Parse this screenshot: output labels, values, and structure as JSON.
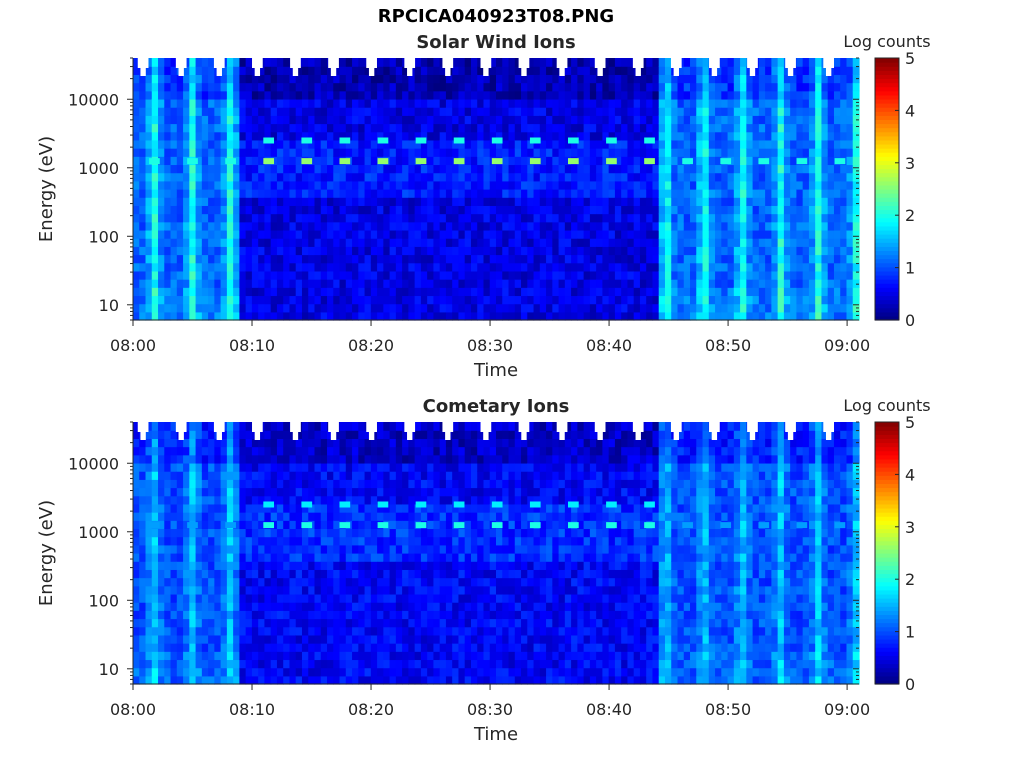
{
  "figure_title": "RPCICA040923T08.PNG",
  "chart_data": [
    {
      "type": "heatmap",
      "title": "Solar Wind Ions",
      "xlabel": "Time",
      "ylabel": "Energy (eV)",
      "y_scale": "log",
      "xlim": [
        "08:00",
        "09:01"
      ],
      "ylim": [
        6,
        40000
      ],
      "x_ticks": [
        "08:00",
        "08:10",
        "08:20",
        "08:30",
        "08:40",
        "08:50",
        "09:00"
      ],
      "y_ticks": [
        "10",
        "100",
        "1000",
        "10000"
      ],
      "colorbar": {
        "label": "Log counts",
        "range": [
          0,
          5
        ],
        "ticks": [
          "0",
          "1",
          "2",
          "3",
          "4",
          "5"
        ],
        "colormap": "jet"
      },
      "active_interval_start": "08:09",
      "active_interval_end": "08:44",
      "beam_energies_eV": [
        1250,
        2500
      ],
      "beam_period_min": 3.2,
      "saturation_pulse_times": [
        "08:01.8",
        "08:05.0",
        "08:08.2",
        "08:44.8",
        "08:48.0",
        "08:51.2",
        "08:54.4",
        "08:57.6",
        "09:00.8"
      ],
      "background_log_counts": {
        "outer_interval": 1.1,
        "active_interval": 0.5,
        "pulse_peak": 2.0
      },
      "beam_log_counts": {
        "line_1250eV": 2.6,
        "line_2500eV": 2.0
      }
    },
    {
      "type": "heatmap",
      "title": "Cometary Ions",
      "xlabel": "Time",
      "ylabel": "Energy (eV)",
      "y_scale": "log",
      "xlim": [
        "08:00",
        "09:01"
      ],
      "ylim": [
        6,
        40000
      ],
      "x_ticks": [
        "08:00",
        "08:10",
        "08:20",
        "08:30",
        "08:40",
        "08:50",
        "09:00"
      ],
      "y_ticks": [
        "10",
        "100",
        "1000",
        "10000"
      ],
      "colorbar": {
        "label": "Log counts",
        "range": [
          0,
          5
        ],
        "ticks": [
          "0",
          "1",
          "2",
          "3",
          "4",
          "5"
        ],
        "colormap": "jet"
      },
      "active_interval_start": "08:09",
      "active_interval_end": "08:44",
      "beam_energies_eV": [
        1250,
        2500
      ],
      "beam_period_min": 3.2,
      "saturation_pulse_times": [
        "08:01.8",
        "08:05.0",
        "08:08.2",
        "08:44.8",
        "08:48.0",
        "08:51.2",
        "08:54.4",
        "08:57.6",
        "09:00.8"
      ],
      "background_log_counts": {
        "outer_interval": 1.0,
        "active_interval": 0.6,
        "pulse_peak": 1.6
      },
      "beam_log_counts": {
        "line_1250eV": 2.0,
        "line_2500eV": 1.8
      }
    }
  ]
}
